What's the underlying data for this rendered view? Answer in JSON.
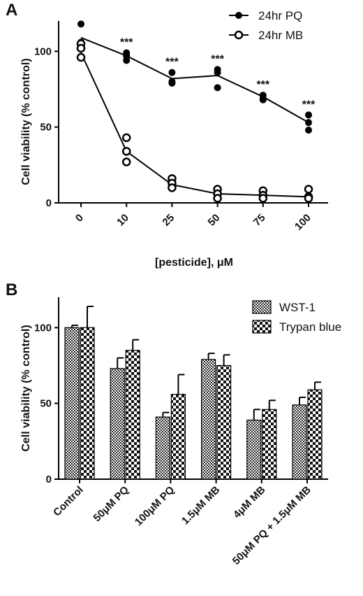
{
  "panelA": {
    "letter": "A",
    "chart_data": {
      "type": "scatter",
      "xlabel": "[pesticide], μM",
      "ylabel": "Cell viability (% control)",
      "categories": [
        "0",
        "10",
        "25",
        "50",
        "75",
        "100"
      ],
      "ylim": [
        0,
        120
      ],
      "yticks": [
        "0",
        "50",
        "100"
      ],
      "legend_position": "top-right",
      "significance": [
        "",
        "***",
        "***",
        "***",
        "***",
        "***"
      ],
      "series": [
        {
          "name": "24hr PQ",
          "marker": "filled-circle",
          "mean": [
            109,
            97,
            82,
            84,
            70,
            53
          ],
          "replicates": [
            [
              118,
              106,
              102
            ],
            [
              99,
              97,
              94
            ],
            [
              86,
              80,
              79
            ],
            [
              88,
              86,
              76
            ],
            [
              71,
              69,
              68
            ],
            [
              58,
              53,
              48
            ]
          ]
        },
        {
          "name": "24hr MB",
          "marker": "open-circle",
          "mean": [
            99,
            34,
            12,
            6,
            5,
            4
          ],
          "replicates": [
            [
              105,
              102,
              96
            ],
            [
              43,
              34,
              27
            ],
            [
              16,
              13,
              10
            ],
            [
              9,
              6,
              3
            ],
            [
              8,
              5,
              3
            ],
            [
              9,
              4,
              3
            ]
          ]
        }
      ]
    }
  },
  "panelB": {
    "letter": "B",
    "chart_data": {
      "type": "bar",
      "ylabel": "Cell viability (% control)",
      "xlabel": "",
      "categories": [
        "Control",
        "50μM PQ",
        "100μM PQ",
        "1.5μM MB",
        "4μM MB",
        "50μM PQ + 1.5μM MB"
      ],
      "ylim": [
        0,
        120
      ],
      "yticks": [
        "0",
        "50",
        "100"
      ],
      "legend_position": "top-right",
      "series": [
        {
          "name": "WST-1",
          "pattern": "fine-check",
          "values": [
            100,
            73,
            41,
            79,
            39,
            49
          ],
          "errors": [
            1.5,
            7,
            3,
            4,
            7,
            5
          ]
        },
        {
          "name": "Trypan blue",
          "pattern": "coarse-check",
          "values": [
            100,
            85,
            56,
            75,
            46,
            59
          ],
          "errors": [
            14,
            7,
            13,
            7,
            6,
            5
          ]
        }
      ]
    }
  }
}
